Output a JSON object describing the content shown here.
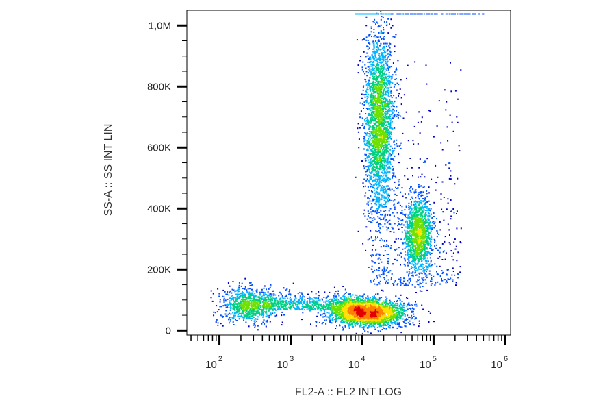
{
  "chart_data": {
    "type": "scatter",
    "subtype": "flow-cytometry density dot plot",
    "title": "",
    "xlabel": "FL2-A :: FL2 INT LOG",
    "ylabel": "SS-A :: SS INT LIN",
    "x_scale": "log",
    "y_scale": "linear",
    "xlim": [
      35,
      1200000
    ],
    "ylim": [
      -15000,
      1050000
    ],
    "x_ticks": [
      {
        "value": 100,
        "base": "10",
        "exp": "2"
      },
      {
        "value": 1000,
        "base": "10",
        "exp": "3"
      },
      {
        "value": 10000,
        "base": "10",
        "exp": "4"
      },
      {
        "value": 100000,
        "base": "10",
        "exp": "5"
      },
      {
        "value": 1000000,
        "base": "10",
        "exp": "6"
      }
    ],
    "y_ticks": [
      {
        "value": 0,
        "label": "0"
      },
      {
        "value": 200000,
        "label": "200K"
      },
      {
        "value": 400000,
        "label": "400K"
      },
      {
        "value": 600000,
        "label": "600K"
      },
      {
        "value": 800000,
        "label": "800K"
      },
      {
        "value": 1000000,
        "label": "1,0M"
      }
    ],
    "grid": false,
    "legend": "none",
    "color_scale": [
      "#0000c8",
      "#0050ff",
      "#00b4ff",
      "#00d080",
      "#70e000",
      "#ffe000",
      "#ff8000",
      "#e00000"
    ],
    "populations": [
      {
        "x_center": 250,
        "x_spread_log": 0.2,
        "y_center": 85000,
        "y_spread": 28000,
        "points": 900
      },
      {
        "x_center": 12000,
        "x_spread_log": 0.27,
        "y_center": 60000,
        "y_spread": 22000,
        "points": 2600
      },
      {
        "x_center": 17000,
        "x_spread_log": 0.1,
        "y_center": 680000,
        "y_spread": 150000,
        "points": 2600
      },
      {
        "x_center": 60000,
        "x_spread_log": 0.1,
        "y_center": 320000,
        "y_spread": 65000,
        "points": 1300
      }
    ],
    "saturation_events": {
      "y": 1040000,
      "x_range": [
        8000,
        500000
      ],
      "points": 160
    }
  }
}
